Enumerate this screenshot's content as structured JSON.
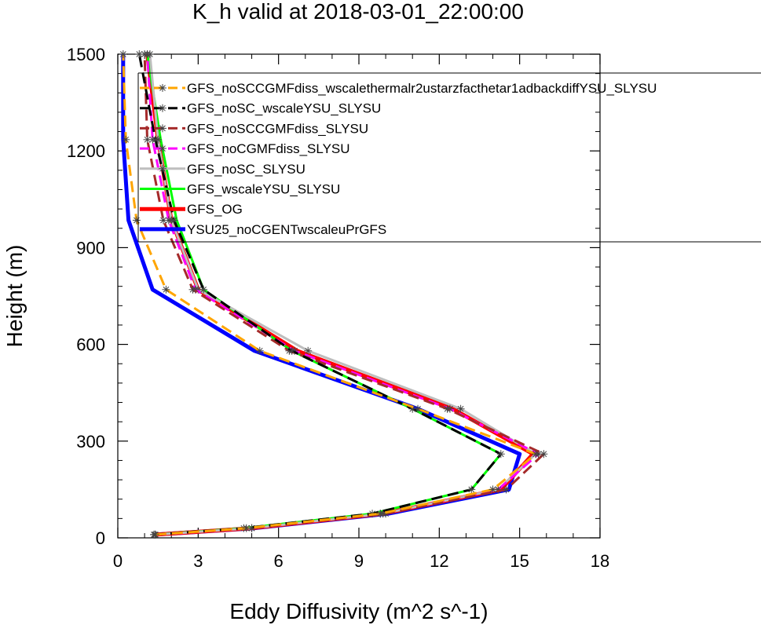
{
  "chart_data": {
    "type": "line",
    "title": "K_h valid at 2018-03-01_22:00:00",
    "xlabel": "Eddy Diffusivity (m^2 s^-1)",
    "ylabel": "Height (m)",
    "xlim": [
      0,
      18
    ],
    "ylim": [
      0,
      1500
    ],
    "xticks": [
      "0",
      "3",
      "6",
      "9",
      "12",
      "15",
      "18"
    ],
    "yticks": [
      "0",
      "300",
      "600",
      "900",
      "1200",
      "1500"
    ],
    "legend_position": "top-right",
    "y": [
      10,
      30,
      75,
      150,
      260,
      400,
      580,
      770,
      985,
      1235,
      1500
    ],
    "series": [
      {
        "name": "GFS_noSCCGMFdiss_wscalethermalr2ustarzfacthetar1adbackdiffYSU_SLYSU",
        "color": "#ffa500",
        "dash": "long",
        "width": 3,
        "markers": true,
        "x": [
          1.4,
          4.8,
          9.8,
          14.0,
          15.6,
          11.2,
          5.3,
          1.8,
          0.7,
          0.3,
          0.2
        ]
      },
      {
        "name": "GFS_noSC_wscaleYSU_SLYSU",
        "color": "#000000",
        "dash": "long",
        "width": 3,
        "markers": true,
        "x": [
          1.35,
          4.7,
          9.5,
          13.2,
          14.3,
          11.0,
          6.5,
          3.2,
          2.1,
          1.4,
          0.8
        ]
      },
      {
        "name": "GFS_noSCCGMFdiss_SLYSU",
        "color": "#a52a2a",
        "dash": "long",
        "width": 3,
        "markers": true,
        "x": [
          1.35,
          5.0,
          10.0,
          14.5,
          15.9,
          12.3,
          6.4,
          2.8,
          1.7,
          1.1,
          1.0
        ]
      },
      {
        "name": "GFS_noCGMFdiss_SLYSU",
        "color": "#ff00ff",
        "dash": "long",
        "width": 3,
        "markers": true,
        "x": [
          1.4,
          5.0,
          9.8,
          14.2,
          15.7,
          12.4,
          6.6,
          2.9,
          1.9,
          1.3,
          1.1
        ]
      },
      {
        "name": "GFS_noSC_SLYSU",
        "color": "#bebebe",
        "dash": "solid",
        "width": 3,
        "markers": true,
        "x": [
          1.4,
          5.0,
          9.9,
          14.2,
          15.6,
          12.8,
          7.1,
          3.0,
          2.0,
          1.5,
          1.2
        ]
      },
      {
        "name": "GFS_wscaleYSU_SLYSU",
        "color": "#00ff00",
        "dash": "solid",
        "width": 3,
        "markers": false,
        "x": [
          1.35,
          4.7,
          9.5,
          13.2,
          14.3,
          11.0,
          6.5,
          3.2,
          2.2,
          1.6,
          1.1
        ]
      },
      {
        "name": "GFS_OG",
        "color": "#ff0000",
        "dash": "solid",
        "width": 5,
        "markers": false,
        "x": [
          1.4,
          5.0,
          9.9,
          14.3,
          15.5,
          12.5,
          6.7,
          3.0,
          2.0,
          1.5,
          1.1
        ]
      },
      {
        "name": "YSU25_noCGENTwscaleuPrGFS",
        "color": "#0000ff",
        "dash": "solid",
        "width": 5,
        "markers": false,
        "x": [
          1.4,
          5.1,
          10.1,
          14.6,
          15.0,
          11.2,
          5.1,
          1.3,
          0.4,
          0.2,
          0.2
        ]
      }
    ]
  }
}
